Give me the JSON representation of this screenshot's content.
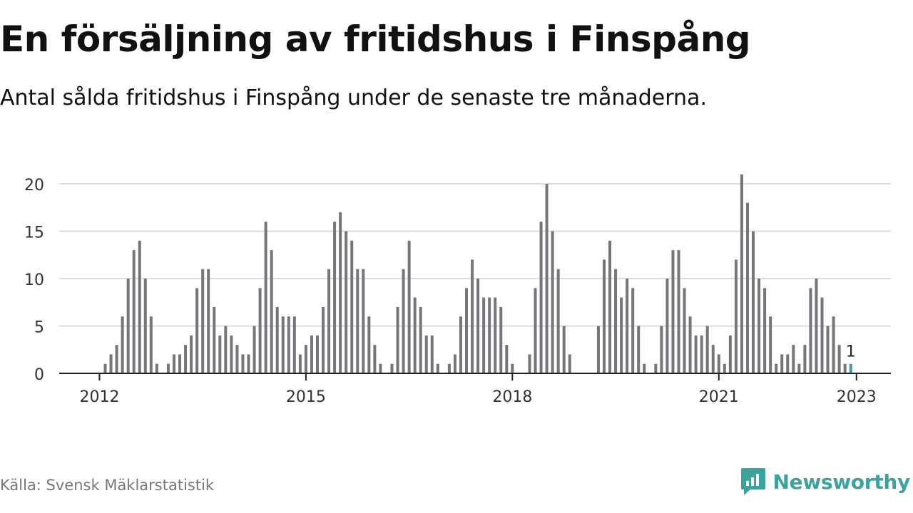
{
  "header": {
    "title": "En försäljning av fritidshus i Finspång",
    "subtitle": "Antal sålda fritidshus i Finspång under de senaste tre månaderna."
  },
  "footer": {
    "source": "Källa: Svensk Mäklarstatistik",
    "brand": "Newsworthy"
  },
  "colors": {
    "bar": "#75757a",
    "highlight": "#3aa39d",
    "grid": "#dddddd",
    "axis": "#222222"
  },
  "chart_data": {
    "type": "bar",
    "x_start": "2012-01",
    "y_ticks": [
      0,
      5,
      10,
      15,
      20
    ],
    "x_ticks": [
      "2012",
      "2015",
      "2018",
      "2021",
      "2023"
    ],
    "ylim": [
      0,
      21
    ],
    "grid": true,
    "highlight_label": "1",
    "values": [
      0,
      1,
      2,
      3,
      6,
      10,
      13,
      14,
      10,
      6,
      1,
      0,
      1,
      2,
      2,
      3,
      4,
      9,
      11,
      11,
      7,
      4,
      5,
      4,
      3,
      2,
      2,
      5,
      9,
      16,
      13,
      7,
      6,
      6,
      6,
      2,
      3,
      4,
      4,
      7,
      11,
      16,
      17,
      15,
      14,
      11,
      11,
      6,
      3,
      1,
      0,
      1,
      7,
      11,
      14,
      8,
      7,
      4,
      4,
      1,
      0,
      1,
      2,
      6,
      9,
      12,
      10,
      8,
      8,
      8,
      7,
      3,
      1,
      0,
      0,
      2,
      9,
      16,
      20,
      15,
      11,
      5,
      2,
      0,
      0,
      0,
      0,
      5,
      12,
      14,
      11,
      8,
      10,
      9,
      5,
      1,
      0,
      1,
      5,
      10,
      13,
      13,
      9,
      6,
      4,
      4,
      5,
      3,
      2,
      1,
      4,
      12,
      21,
      18,
      15,
      10,
      9,
      6,
      1,
      2,
      2,
      3,
      1,
      3,
      9,
      10,
      8,
      5,
      6,
      3,
      1,
      1
    ]
  }
}
